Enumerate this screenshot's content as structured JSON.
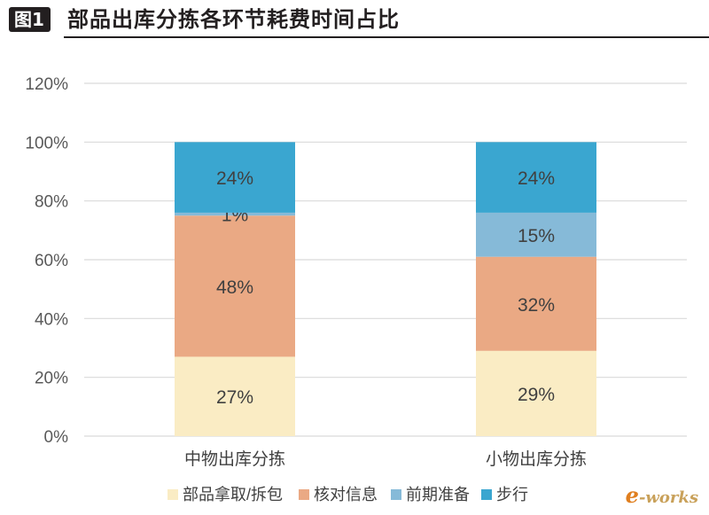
{
  "header": {
    "badge": "图1",
    "title": "部品出库分拣各环节耗费时间占比"
  },
  "watermark": {
    "e": "e",
    "rest": "-works"
  },
  "chart_data": {
    "type": "bar",
    "stacked": true,
    "title": "部品出库分拣各环节耗费时间占比",
    "categories": [
      "中物出库分拣",
      "小物出库分拣"
    ],
    "series": [
      {
        "name": "部品拿取/拆包",
        "color": "#faecc4",
        "values": [
          27,
          29
        ],
        "labels": [
          "27%",
          "29%"
        ]
      },
      {
        "name": "核对信息",
        "color": "#eaa984",
        "values": [
          48,
          32
        ],
        "labels": [
          "48%",
          "32%"
        ]
      },
      {
        "name": "前期准备",
        "color": "#86bad8",
        "values": [
          1,
          15
        ],
        "labels": [
          "1%",
          "15%"
        ]
      },
      {
        "name": "步行",
        "color": "#3aa6d0",
        "values": [
          24,
          24
        ],
        "labels": [
          "24%",
          "24%"
        ]
      }
    ],
    "ylim": [
      0,
      120
    ],
    "yticks": [
      0,
      20,
      40,
      60,
      80,
      100,
      120
    ],
    "ytick_labels": [
      "0%",
      "20%",
      "40%",
      "60%",
      "80%",
      "100%",
      "120%"
    ],
    "grid": true,
    "legend_position": "bottom"
  }
}
